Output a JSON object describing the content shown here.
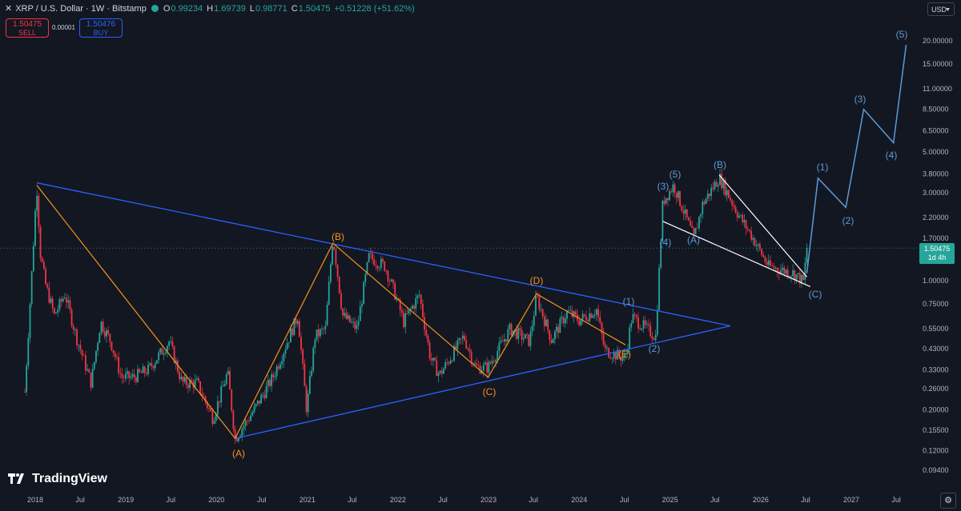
{
  "header": {
    "close_glyph": "✕",
    "symbol": "XRP / U.S. Dollar · 1W · Bitstamp",
    "status_color": "#26a69a",
    "ohlc": [
      {
        "label": "O",
        "value": "0.99234"
      },
      {
        "label": "H",
        "value": "1.69739"
      },
      {
        "label": "L",
        "value": "0.98771"
      },
      {
        "label": "C",
        "value": "1.50475"
      },
      {
        "label": "",
        "value": "+0.51228 (+51.62%)"
      }
    ]
  },
  "trade": {
    "sell_price": "1.50475",
    "sell_label": "SELL",
    "spread": "0.00001",
    "buy_price": "1.50476",
    "buy_label": "BUY"
  },
  "currency": "USD",
  "price_tag": {
    "price": "1.50475",
    "countdown": "1d 4h"
  },
  "logo_text": "TradingView",
  "colors": {
    "up": "#26a69a",
    "down": "#f23645",
    "triangle": "#2962ff",
    "abc_wave": "#f7931a",
    "impulse": "#5b9bd5",
    "wedge": "#ffffff"
  },
  "chart_data": {
    "type": "candlestick",
    "scale": "log",
    "timeframe": "1W",
    "x_ticks": [
      "2018",
      "Jul",
      "2019",
      "Jul",
      "2020",
      "Jul",
      "2021",
      "Jul",
      "2022",
      "Jul",
      "2023",
      "Jul",
      "2024",
      "Jul",
      "2025",
      "Jul",
      "2026",
      "Jul",
      "2027",
      "Jul"
    ],
    "y_ticks": [
      "20.00000",
      "15.00000",
      "11.00000",
      "8.50000",
      "6.50000",
      "5.00000",
      "3.80000",
      "3.00000",
      "2.20000",
      "1.70000",
      "1.00000",
      "0.75000",
      "0.55000",
      "0.43000",
      "0.33000",
      "0.26000",
      "0.20000",
      "0.15500",
      "0.12000",
      "0.09400"
    ],
    "price_path": [
      [
        "2017-11-20",
        0.25
      ],
      [
        "2017-12-18",
        1.1
      ],
      [
        "2018-01-07",
        3.3
      ],
      [
        "2018-01-22",
        1.4
      ],
      [
        "2018-02-12",
        0.95
      ],
      [
        "2018-03-19",
        0.65
      ],
      [
        "2018-05-01",
        0.85
      ],
      [
        "2018-06-15",
        0.5
      ],
      [
        "2018-08-14",
        0.28
      ],
      [
        "2018-09-21",
        0.6
      ],
      [
        "2018-11-01",
        0.47
      ],
      [
        "2018-12-14",
        0.3
      ],
      [
        "2019-02-01",
        0.3
      ],
      [
        "2019-04-01",
        0.33
      ],
      [
        "2019-06-25",
        0.47
      ],
      [
        "2019-08-15",
        0.28
      ],
      [
        "2019-10-15",
        0.28
      ],
      [
        "2019-12-18",
        0.18
      ],
      [
        "2020-02-15",
        0.32
      ],
      [
        "2020-03-16",
        0.14
      ],
      [
        "2020-06-01",
        0.2
      ],
      [
        "2020-08-15",
        0.3
      ],
      [
        "2020-11-24",
        0.65
      ],
      [
        "2020-12-29",
        0.2
      ],
      [
        "2021-02-01",
        0.5
      ],
      [
        "2021-03-15",
        0.55
      ],
      [
        "2021-04-14",
        1.75
      ],
      [
        "2021-05-23",
        0.65
      ],
      [
        "2021-07-20",
        0.55
      ],
      [
        "2021-09-06",
        1.35
      ],
      [
        "2021-11-10",
        1.2
      ],
      [
        "2021-12-20",
        0.85
      ],
      [
        "2022-01-24",
        0.6
      ],
      [
        "2022-03-28",
        0.84
      ],
      [
        "2022-05-12",
        0.38
      ],
      [
        "2022-06-18",
        0.31
      ],
      [
        "2022-09-23",
        0.5
      ],
      [
        "2022-11-10",
        0.34
      ],
      [
        "2022-12-30",
        0.34
      ],
      [
        "2023-03-29",
        0.55
      ],
      [
        "2023-06-15",
        0.47
      ],
      [
        "2023-07-13",
        0.82
      ],
      [
        "2023-09-11",
        0.48
      ],
      [
        "2023-11-15",
        0.68
      ],
      [
        "2024-01-01",
        0.61
      ],
      [
        "2024-03-11",
        0.7
      ],
      [
        "2024-04-13",
        0.42
      ],
      [
        "2024-07-05",
        0.38
      ],
      [
        "2024-07-31",
        0.64
      ],
      [
        "2024-11-04",
        0.5
      ],
      [
        "2024-12-03",
        2.7
      ],
      [
        "2025-01-16",
        3.3
      ],
      [
        "2025-04-07",
        1.7
      ],
      [
        "2025-05-12",
        2.6
      ],
      [
        "2025-07-18",
        3.65
      ],
      [
        "2025-10-10",
        2.2
      ],
      [
        "2025-11-21",
        1.8
      ],
      [
        "2026-02-01",
        1.2
      ],
      [
        "2026-05-15",
        1.1
      ],
      [
        "2026-06-22",
        0.99
      ],
      [
        "2026-07-06",
        1.50475
      ]
    ],
    "annotations": {
      "blue_triangle": {
        "upper": [
          [
            "2018-01-07",
            3.4
          ],
          [
            "2025-09-01",
            0.57
          ]
        ],
        "lower": [
          [
            "2020-03-16",
            0.14
          ],
          [
            "2025-09-01",
            0.57
          ]
        ]
      },
      "abc_wave": {
        "labels": [
          "(A)",
          "(B)",
          "(C)",
          "(D)",
          "(E)"
        ],
        "points": [
          [
            "2018-01-07",
            3.3
          ],
          [
            "2020-03-16",
            0.14
          ],
          [
            "2021-04-14",
            1.6
          ],
          [
            "2022-12-30",
            0.3
          ],
          [
            "2023-07-13",
            0.85
          ],
          [
            "2024-07-05",
            0.45
          ]
        ]
      },
      "impulse_2024": {
        "labels": [
          "(1)",
          "(2)",
          "(3)",
          "(4)",
          "(5)"
        ]
      },
      "correction_2025": {
        "labels": [
          "(A)",
          "(B)",
          "(C)"
        ]
      },
      "wedge": {
        "upper": [
          [
            "2025-07-18",
            3.75
          ],
          [
            "2026-07-06",
            1.05
          ]
        ],
        "lower": [
          [
            "2024-12-03",
            2.1
          ],
          [
            "2026-07-20",
            0.93
          ]
        ]
      },
      "projection": {
        "labels": [
          "(1)",
          "(2)",
          "(3)",
          "(4)",
          "(5)"
        ],
        "points": [
          [
            "2026-07-06",
            1.1
          ],
          [
            "2026-08-20",
            3.6
          ],
          [
            "2026-12-10",
            2.5
          ],
          [
            "2027-02-20",
            8.5
          ],
          [
            "2027-06-20",
            5.6
          ],
          [
            "2027-08-10",
            19.0
          ]
        ]
      }
    }
  }
}
